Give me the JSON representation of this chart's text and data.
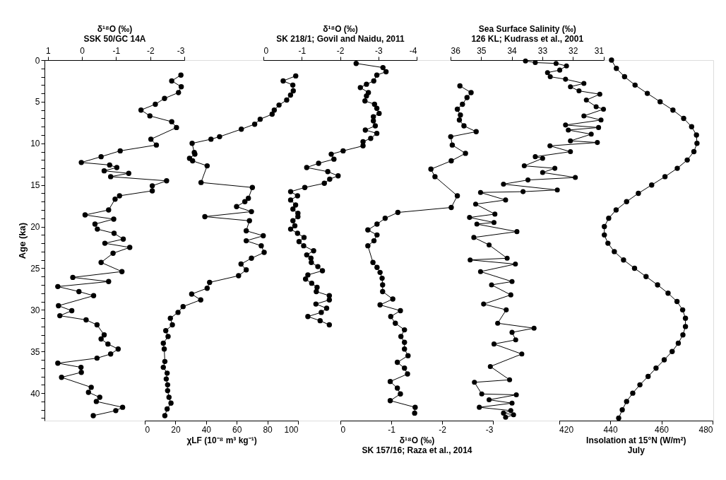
{
  "chart_data": [
    {
      "type": "line",
      "marker": "circle",
      "ylabel": "Age (ka)",
      "ylim": [
        43.3,
        0
      ],
      "yticks": [
        0,
        {
          "value": 1,
          "label": null
        },
        {
          "value": 2,
          "label": null
        },
        {
          "value": 3,
          "label": null
        },
        {
          "value": 4,
          "label": null
        },
        5,
        {
          "value": 6,
          "label": null
        },
        {
          "value": 7,
          "label": null
        },
        {
          "value": 8,
          "label": null
        },
        {
          "value": 9,
          "label": null
        },
        10,
        {
          "value": 11,
          "label": null
        },
        {
          "value": 12,
          "label": null
        },
        {
          "value": 13,
          "label": null
        },
        {
          "value": 14,
          "label": null
        },
        15,
        {
          "value": 16,
          "label": null
        },
        {
          "value": 17,
          "label": null
        },
        {
          "value": 18,
          "label": null
        },
        {
          "value": 19,
          "label": null
        },
        20,
        {
          "value": 21,
          "label": null
        },
        {
          "value": 22,
          "label": null
        },
        {
          "value": 23,
          "label": null
        },
        {
          "value": 24,
          "label": null
        },
        25,
        {
          "value": 26,
          "label": null
        },
        {
          "value": 27,
          "label": null
        },
        {
          "value": 28,
          "label": null
        },
        {
          "value": 29,
          "label": null
        },
        30,
        {
          "value": 31,
          "label": null
        },
        {
          "value": 32,
          "label": null
        },
        {
          "value": 33,
          "label": null
        },
        {
          "value": 34,
          "label": null
        },
        35,
        {
          "value": 36,
          "label": null
        },
        {
          "value": 37,
          "label": null
        },
        {
          "value": 38,
          "label": null
        },
        {
          "value": 39,
          "label": null
        },
        40,
        {
          "value": 41,
          "label": null
        },
        {
          "value": 42,
          "label": null
        },
        {
          "value": 43,
          "label": null
        }
      ],
      "xlabel": "δ¹⁸O (‰)\nSSK 50/GC 14A",
      "xlim": [
        1.1,
        -3
      ],
      "xticks": [
        1,
        0,
        -1,
        -2,
        -3
      ],
      "series": [
        {
          "color": "#000000",
          "x": [
            -2.9,
            -2.63,
            -2.91,
            -2.83,
            -2.42,
            -2.15,
            -1.73,
            -1.99,
            -2.63,
            -2.77,
            -2.02,
            -2.18,
            -1.12,
            -0.56,
            0.02,
            -0.81,
            -1.02,
            -0.65,
            -1.37,
            -0.84,
            -2.48,
            -2.06,
            -2.06,
            -1.1,
            -0.97,
            -0.78,
            -0.09,
            -0.93,
            -0.38,
            -0.45,
            -0.94,
            -1.21,
            -0.67,
            -1.4,
            -0.91,
            -0.56,
            -1.17,
            0.27,
            -0.78,
            0.71,
            0.09,
            -0.34,
            0.69,
            0.3,
            0.65,
            -0.12,
            -0.44,
            -0.65,
            -0.56,
            -0.76,
            -1.06,
            -0.84,
            -0.44,
            0.71,
            0.03,
            0.02,
            0.6,
            -0.27,
            -0.19,
            -0.52,
            -0.42,
            -1.19,
            -0.99,
            -0.33
          ],
          "values": [
            1.8,
            2.5,
            3.2,
            3.9,
            4.6,
            5.3,
            6.0,
            6.7,
            7.4,
            8.1,
            9.5,
            10.2,
            10.9,
            11.6,
            12.3,
            12.6,
            12.9,
            13.3,
            13.6,
            14.0,
            14.5,
            15.1,
            15.7,
            16.3,
            16.7,
            18.0,
            18.6,
            19.1,
            19.7,
            20.3,
            20.8,
            21.5,
            22.0,
            22.5,
            23.2,
            24.3,
            25.4,
            26.1,
            26.6,
            27.2,
            27.8,
            28.3,
            29.5,
            30.1,
            30.7,
            31.2,
            31.8,
            33.0,
            33.5,
            34.1,
            34.7,
            35.3,
            35.8,
            36.4,
            36.9,
            37.5,
            38.1,
            39.3,
            39.9,
            40.5,
            41.0,
            41.7,
            42.1,
            42.7
          ]
        }
      ]
    },
    {
      "type": "line",
      "marker": "circle",
      "ylim": [
        43.3,
        0
      ],
      "tick_labels": "x",
      "xlabel": "χLF (10⁻⁸ m³ kg⁻¹)",
      "xlim": [
        0,
        100
      ],
      "xticks": [
        0,
        20,
        40,
        60,
        80,
        100
      ],
      "series": [
        {
          "color": "#000000",
          "x": [
            98.5,
            90.3,
            96.6,
            96.9,
            95.1,
            92.6,
            87.6,
            84.5,
            83.1,
            75.3,
            71.7,
            63.0,
            48.8,
            43.2,
            30.9,
            32.3,
            32.7,
            29.2,
            31.2,
            40.7,
            36.7,
            70.2,
            67.6,
            65.3,
            59.9,
            69.6,
            39.2,
            68.3,
            66.2,
            77.3,
            66.2,
            76.0,
            77.9,
            69.6,
            62.8,
            66.2,
            61.2,
            42.3,
            40.7,
            30.6,
            36.5,
            25.0,
            21.7,
            16.7,
            18.0,
            13.7,
            15.2,
            12.1,
            12.7,
            13.1,
            12.1,
            14.6,
            14.0,
            14.9,
            14.9,
            15.8,
            17.1,
            14.6,
            13.1
          ],
          "values": [
            1.9,
            2.5,
            3.0,
            3.7,
            4.2,
            4.8,
            5.4,
            6.0,
            6.5,
            7.1,
            7.7,
            8.3,
            9.2,
            9.5,
            10.0,
            11.1,
            11.3,
            11.8,
            12.1,
            12.7,
            14.7,
            15.3,
            16.6,
            17.0,
            17.6,
            18.2,
            18.8,
            19.3,
            20.5,
            21.1,
            21.7,
            22.3,
            23.1,
            23.8,
            24.5,
            25.2,
            25.9,
            26.7,
            27.4,
            28.1,
            28.8,
            29.6,
            30.3,
            31.0,
            31.8,
            32.5,
            33.2,
            34.0,
            34.7,
            36.2,
            36.9,
            37.6,
            38.3,
            39.0,
            39.7,
            40.5,
            41.2,
            41.9,
            42.7
          ]
        }
      ]
    },
    {
      "type": "line",
      "marker": "circle",
      "ylim": [
        43.3,
        0
      ],
      "tick_labels": "x",
      "xlabel": "δ¹⁸O (‰)\nSK 218/1; Govil and Naidu, 2011",
      "xlim": [
        0,
        -4
      ],
      "xticks": [
        0,
        -1,
        -2,
        -3,
        -4
      ],
      "series": [
        {
          "color": "#000000",
          "x": [
            -2.42,
            -3.12,
            -3.2,
            -2.96,
            -2.88,
            -2.69,
            -2.53,
            -2.74,
            -2.69,
            -2.65,
            -2.9,
            -2.96,
            -3.02,
            -2.87,
            -2.87,
            -2.92,
            -2.66,
            -2.96,
            -2.8,
            -2.6,
            -2.6,
            -2.08,
            -1.77,
            -1.84,
            -1.44,
            -1.13,
            -1.68,
            -1.95,
            -1.73,
            -1.59,
            -1.08,
            -0.71,
            -0.89,
            -0.71,
            -0.84,
            -0.77,
            -0.9,
            -0.9,
            -0.77,
            -0.82,
            -0.71,
            -0.89,
            -1.06,
            -0.93,
            -1.05,
            -1.31,
            -1.13,
            -1.24,
            -1.25,
            -1.42,
            -1.54,
            -1.16,
            -1.1,
            -1.26,
            -1.4,
            -1.38,
            -1.72,
            -1.72,
            -1.37,
            -1.65,
            -1.51,
            -1.16,
            -1.48,
            -1.72
          ],
          "values": [
            0.4,
            0.9,
            1.4,
            1.8,
            2.5,
            2.9,
            3.3,
            3.9,
            4.3,
            4.9,
            5.3,
            5.8,
            6.4,
            6.8,
            7.3,
            7.9,
            8.4,
            8.8,
            9.4,
            9.8,
            10.3,
            10.9,
            11.3,
            11.9,
            12.4,
            12.9,
            13.4,
            13.9,
            14.3,
            14.8,
            15.3,
            15.8,
            16.3,
            16.8,
            17.4,
            17.9,
            18.4,
            18.8,
            19.3,
            19.9,
            20.3,
            20.8,
            21.3,
            21.8,
            22.3,
            22.9,
            23.4,
            23.8,
            24.3,
            24.8,
            25.3,
            25.8,
            26.3,
            26.8,
            27.3,
            27.8,
            28.3,
            28.8,
            29.3,
            29.8,
            30.3,
            30.8,
            31.3,
            31.8
          ]
        }
      ]
    },
    {
      "type": "line",
      "marker": "circle",
      "ylim": [
        43.3,
        0
      ],
      "tick_labels": "x",
      "xlabel": "δ¹⁸O (‰)\nSK 157/16; Raza et al., 2014",
      "xlim": [
        0,
        -3
      ],
      "xticks": [
        0,
        -1,
        -2,
        -3
      ],
      "series": [
        {
          "color": "#000000",
          "x": [
            -2.35,
            -2.57,
            -2.49,
            -2.4,
            -2.3,
            -2.36,
            -2.34,
            -2.43,
            -2.67,
            -2.17,
            -2.2,
            -2.46,
            -2.18,
            -1.78,
            -1.86,
            -2.3,
            -2.18,
            -1.13,
            -0.88,
            -0.72,
            -0.54,
            -0.72,
            -0.66,
            -0.54,
            -0.64,
            -0.72,
            -0.78,
            -0.82,
            -0.83,
            -0.83,
            -1.03,
            -0.78,
            -1.18,
            -0.99,
            -1.08,
            -1.26,
            -1.19,
            -1.26,
            -1.26,
            -1.33,
            -1.12,
            -1.26,
            -1.32,
            -0.98,
            -1.12,
            -1.18,
            -0.98,
            -1.47,
            -1.46
          ],
          "values": [
            3.1,
            3.9,
            4.5,
            5.3,
            5.9,
            6.6,
            7.2,
            7.9,
            8.6,
            9.2,
            10.2,
            11.2,
            12.1,
            13.1,
            14.0,
            16.3,
            17.7,
            18.3,
            19.0,
            19.7,
            20.4,
            21.0,
            21.7,
            22.3,
            24.3,
            24.9,
            25.5,
            26.2,
            27.0,
            27.8,
            28.7,
            29.4,
            30.1,
            30.8,
            31.6,
            32.4,
            33.2,
            33.9,
            34.7,
            35.5,
            36.3,
            37.0,
            37.7,
            38.6,
            39.4,
            40.1,
            40.9,
            41.7,
            42.4
          ]
        }
      ]
    },
    {
      "type": "line",
      "marker": "circle",
      "ylim": [
        43.3,
        0
      ],
      "tick_labels": "x",
      "xlabel": "Sea Surface Salinity (‰)\n126 KL; Kudrass et al., 2001",
      "xlim": [
        36,
        31
      ],
      "xticks": [
        36,
        35,
        34,
        33,
        32,
        31
      ],
      "series": [
        {
          "color": "#000000",
          "x": [
            33.55,
            33.23,
            32.55,
            32.21,
            32.43,
            32.83,
            32.74,
            32.24,
            31.64,
            32.08,
            31.8,
            31.12,
            31.56,
            31.24,
            31.0,
            31.64,
            31.08,
            32.24,
            31.16,
            32.15,
            31.4,
            32.08,
            31.2,
            32.75,
            32.08,
            33.23,
            32.99,
            33.59,
            32.59,
            32.99,
            31.92,
            33.47,
            34.27,
            32.51,
            33.63,
            35.02,
            34.2,
            35.18,
            34.55,
            35.38,
            34.58,
            35.14,
            33.83,
            35.24,
            34.74,
            34.15,
            35.36,
            33.88,
            35.02,
            33.99,
            34.66,
            34.03,
            34.92,
            34.18,
            34.46,
            33.27,
            33.99,
            33.87,
            34.58,
            33.67,
            34.7,
            34.07,
            35.22,
            34.98,
            33.85,
            34.74,
            33.99,
            35.06,
            34.03,
            34.27,
            33.94,
            34.2
          ],
          "values": [
            0.1,
            0.3,
            0.4,
            0.7,
            1.2,
            1.5,
            2.0,
            2.3,
            2.8,
            3.2,
            3.7,
            4.1,
            4.8,
            5.6,
            5.9,
            6.7,
            7.2,
            7.8,
            8.1,
            8.4,
            8.9,
            9.7,
            9.9,
            10.3,
            11.0,
            11.6,
            11.8,
            12.7,
            13.0,
            13.5,
            14.1,
            14.4,
            14.9,
            15.6,
            15.8,
            15.9,
            16.8,
            17.3,
            18.5,
            18.9,
            19.5,
            19.7,
            20.6,
            21.3,
            22.2,
            23.8,
            24.0,
            24.5,
            25.4,
            26.6,
            27.0,
            28.2,
            29.3,
            30.0,
            31.6,
            32.2,
            32.7,
            33.6,
            34.1,
            35.3,
            36.8,
            38.4,
            38.7,
            40.1,
            40.2,
            40.8,
            41.2,
            41.7,
            42.1,
            42.4,
            42.6,
            42.9
          ]
        }
      ]
    },
    {
      "type": "line",
      "marker": "circle",
      "ylim": [
        43.3,
        0
      ],
      "tick_labels": "x",
      "xlabel": "Insolation at 15°N (W/m²)\nJuly",
      "xlim": [
        420,
        480
      ],
      "xticks": [
        420,
        440,
        460,
        480
      ],
      "series": [
        {
          "color": "#000000",
          "x": [
            440.5,
            442.4,
            445.6,
            449.7,
            454.5,
            459.5,
            464.5,
            468.7,
            471.8,
            473.7,
            473.9,
            472.7,
            470.1,
            466.2,
            461.4,
            456.2,
            451.0,
            446.4,
            442.3,
            439.4,
            437.7,
            437.7,
            439.1,
            441.6,
            445.2,
            449.5,
            454.0,
            458.5,
            462.6,
            466.1,
            468.3,
            469.4,
            469.4,
            468.4,
            466.6,
            464.2,
            461.1,
            457.9,
            454.8,
            451.6,
            448.8,
            446.4,
            444.7,
            443.3
          ],
          "values": [
            0,
            1,
            2,
            3,
            4,
            5,
            6,
            7,
            8,
            9,
            10,
            11,
            12,
            13,
            14,
            15,
            16,
            17,
            18,
            19,
            20,
            21,
            22,
            23,
            24,
            25,
            26,
            27,
            28,
            29,
            30,
            31,
            32,
            33,
            34,
            35,
            36,
            37,
            38,
            39,
            40,
            41,
            42,
            43
          ]
        }
      ]
    }
  ]
}
